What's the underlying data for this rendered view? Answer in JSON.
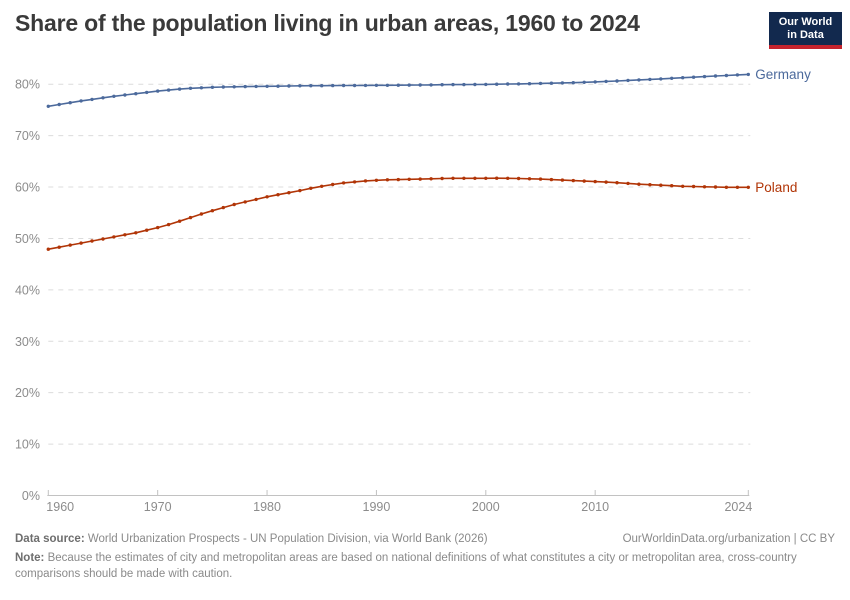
{
  "header": {
    "title": "Share of the population living in urban areas, 1960 to 2024",
    "logo": {
      "line1": "Our World",
      "line2": "in Data",
      "bg_color": "#12294e",
      "accent_color": "#c5232d"
    }
  },
  "chart_data": {
    "type": "line",
    "title": "Share of the population living in urban areas, 1960 to 2024",
    "xlabel": "",
    "ylabel": "",
    "ylim": [
      0,
      80
    ],
    "yticks": [
      0,
      10,
      20,
      30,
      40,
      50,
      60,
      70,
      80
    ],
    "ytick_suffix": "%",
    "xticks": [
      1960,
      1970,
      1980,
      1990,
      2000,
      2010,
      2024
    ],
    "grid": "horizontal-dashed",
    "legend_position": "end-of-line-labels",
    "x": [
      1960,
      1961,
      1962,
      1963,
      1964,
      1965,
      1966,
      1967,
      1968,
      1969,
      1970,
      1971,
      1972,
      1973,
      1974,
      1975,
      1976,
      1977,
      1978,
      1979,
      1980,
      1981,
      1982,
      1983,
      1984,
      1985,
      1986,
      1987,
      1988,
      1989,
      1990,
      1991,
      1992,
      1993,
      1994,
      1995,
      1996,
      1997,
      1998,
      1999,
      2000,
      2001,
      2002,
      2003,
      2004,
      2005,
      2006,
      2007,
      2008,
      2009,
      2010,
      2011,
      2012,
      2013,
      2014,
      2015,
      2016,
      2017,
      2018,
      2019,
      2020,
      2021,
      2022,
      2023,
      2024
    ],
    "series": [
      {
        "name": "Germany",
        "color": "#4C6A9C",
        "values": [
          75.7,
          76.05,
          76.4,
          76.75,
          77.05,
          77.35,
          77.65,
          77.9,
          78.15,
          78.4,
          78.65,
          78.85,
          79.05,
          79.2,
          79.3,
          79.4,
          79.45,
          79.5,
          79.53,
          79.57,
          79.6,
          79.62,
          79.65,
          79.68,
          79.7,
          79.71,
          79.72,
          79.74,
          79.75,
          79.77,
          79.78,
          79.79,
          79.8,
          79.82,
          79.85,
          79.87,
          79.9,
          79.92,
          79.93,
          79.95,
          79.97,
          80.0,
          80.03,
          80.06,
          80.1,
          80.15,
          80.2,
          80.25,
          80.3,
          80.37,
          80.45,
          80.54,
          80.63,
          80.73,
          80.83,
          80.93,
          81.04,
          81.15,
          81.26,
          81.37,
          81.48,
          81.6,
          81.7,
          81.8,
          81.9
        ]
      },
      {
        "name": "Poland",
        "color": "#B13507",
        "values": [
          47.9,
          48.3,
          48.7,
          49.1,
          49.5,
          49.9,
          50.3,
          50.7,
          51.1,
          51.6,
          52.1,
          52.7,
          53.35,
          54.05,
          54.75,
          55.4,
          56.0,
          56.6,
          57.1,
          57.6,
          58.1,
          58.5,
          58.9,
          59.3,
          59.75,
          60.15,
          60.5,
          60.8,
          61.0,
          61.2,
          61.3,
          61.4,
          61.45,
          61.5,
          61.55,
          61.6,
          61.65,
          61.7,
          61.7,
          61.7,
          61.7,
          61.72,
          61.7,
          61.65,
          61.6,
          61.55,
          61.45,
          61.35,
          61.25,
          61.15,
          61.05,
          60.95,
          60.85,
          60.7,
          60.55,
          60.45,
          60.35,
          60.25,
          60.15,
          60.1,
          60.05,
          60.0,
          59.95,
          59.95,
          59.95
        ]
      }
    ]
  },
  "footer": {
    "datasource_label": "Data source:",
    "datasource_text": " World Urbanization Prospects - UN Population Division, via World Bank (2026)",
    "rights": "OurWorldinData.org/urbanization | CC BY",
    "note_label": "Note:",
    "note_text": " Because the estimates of city and metropolitan areas are based on national definitions of what constitutes a city or metropolitan area, cross-country comparisons should be made with caution."
  }
}
